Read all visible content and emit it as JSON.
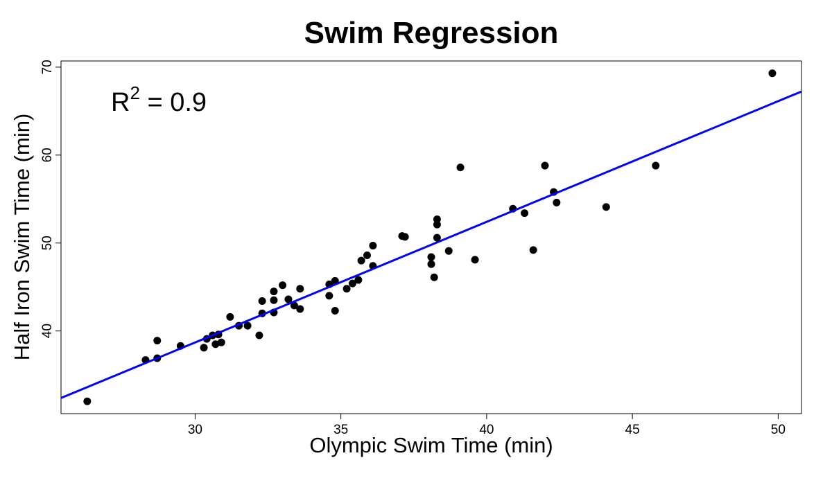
{
  "chart_data": {
    "type": "scatter",
    "title": "Swim Regression",
    "xlabel": "Olympic Swim Time (min)",
    "ylabel": "Half Iron Swim Time (min)",
    "xlim": [
      25.4,
      50.8
    ],
    "ylim": [
      30.6,
      70.7
    ],
    "xticks": [
      30,
      35,
      40,
      45,
      50
    ],
    "yticks": [
      40,
      50,
      60,
      70
    ],
    "grid": false,
    "annotation": {
      "base": "R",
      "sup": "2",
      "rest": " = 0.9"
    },
    "point_color": "#000000",
    "line_color": "#0000ff",
    "regression": {
      "slope": 1.372,
      "intercept": -2.47
    },
    "points": [
      [
        26.3,
        32.0
      ],
      [
        28.3,
        36.7
      ],
      [
        28.7,
        36.9
      ],
      [
        28.7,
        38.9
      ],
      [
        29.5,
        38.3
      ],
      [
        30.3,
        38.1
      ],
      [
        30.4,
        39.1
      ],
      [
        30.6,
        39.5
      ],
      [
        30.7,
        38.5
      ],
      [
        30.8,
        39.6
      ],
      [
        30.9,
        38.7
      ],
      [
        31.2,
        41.6
      ],
      [
        31.5,
        40.6
      ],
      [
        31.8,
        40.6
      ],
      [
        32.2,
        39.5
      ],
      [
        32.3,
        43.4
      ],
      [
        32.3,
        42.0
      ],
      [
        32.7,
        44.5
      ],
      [
        32.7,
        43.5
      ],
      [
        32.7,
        42.1
      ],
      [
        33.0,
        45.2
      ],
      [
        33.2,
        43.6
      ],
      [
        33.4,
        42.9
      ],
      [
        33.6,
        42.5
      ],
      [
        33.6,
        44.8
      ],
      [
        34.6,
        44.0
      ],
      [
        34.6,
        45.3
      ],
      [
        34.8,
        45.7
      ],
      [
        34.8,
        42.3
      ],
      [
        35.2,
        44.8
      ],
      [
        35.4,
        45.4
      ],
      [
        35.6,
        45.8
      ],
      [
        35.7,
        48.0
      ],
      [
        35.9,
        48.6
      ],
      [
        36.1,
        47.4
      ],
      [
        36.1,
        49.7
      ],
      [
        37.1,
        50.8
      ],
      [
        37.2,
        50.7
      ],
      [
        38.1,
        48.4
      ],
      [
        38.1,
        47.6
      ],
      [
        38.2,
        46.1
      ],
      [
        38.3,
        50.6
      ],
      [
        38.3,
        52.7
      ],
      [
        38.3,
        52.1
      ],
      [
        38.7,
        49.1
      ],
      [
        39.1,
        58.6
      ],
      [
        39.6,
        48.1
      ],
      [
        40.9,
        53.9
      ],
      [
        41.3,
        53.4
      ],
      [
        41.6,
        49.2
      ],
      [
        42.0,
        58.8
      ],
      [
        42.3,
        55.8
      ],
      [
        42.4,
        54.6
      ],
      [
        44.1,
        54.1
      ],
      [
        45.8,
        58.8
      ],
      [
        49.8,
        69.3
      ]
    ]
  }
}
